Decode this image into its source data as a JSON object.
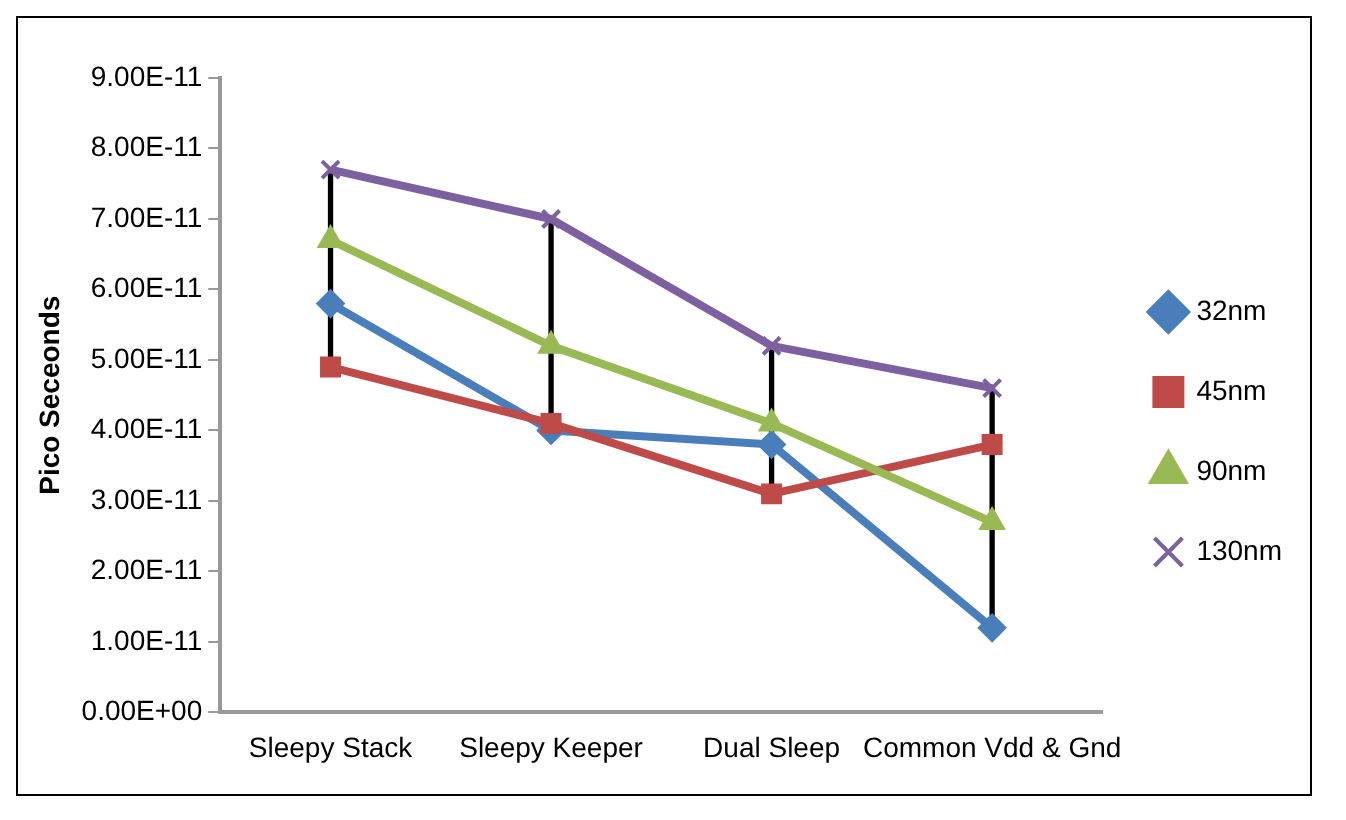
{
  "chart_data": {
    "type": "line",
    "ylabel": "Pico Seceonds",
    "categories": [
      "Sleepy Stack",
      "Sleepy Keeper",
      "Dual Sleep",
      "Common Vdd & Gnd"
    ],
    "series": [
      {
        "name": "32nm",
        "color": "#4a7ebb",
        "marker": "diamond",
        "values": [
          5.8e-11,
          4e-11,
          3.8e-11,
          1.2e-11
        ]
      },
      {
        "name": "45nm",
        "color": "#be4b48",
        "marker": "square",
        "values": [
          4.9e-11,
          4.1e-11,
          3.1e-11,
          3.8e-11
        ]
      },
      {
        "name": "90nm",
        "color": "#98b954",
        "marker": "triangle",
        "values": [
          6.7e-11,
          5.2e-11,
          4.1e-11,
          2.7e-11
        ]
      },
      {
        "name": "130nm",
        "color": "#7d60a0",
        "marker": "cross",
        "values": [
          7.7e-11,
          7e-11,
          5.2e-11,
          4.6e-11
        ]
      },
      {
        "type": "bar",
        "color": "#000000",
        "base": [
          4.9e-11,
          4e-11,
          3.1e-11,
          1.2e-11
        ],
        "values": [
          2.8e-11,
          3e-11,
          2.1e-11,
          3.4e-11
        ]
      }
    ],
    "ylim": [
      0,
      9e-11
    ],
    "yticks": [
      {
        "value": 0,
        "label": "0.00E+00"
      },
      {
        "value": 1e-11,
        "label": "1.00E-11"
      },
      {
        "value": 2e-11,
        "label": "2.00E-11"
      },
      {
        "value": 3e-11,
        "label": "3.00E-11"
      },
      {
        "value": 4e-11,
        "label": "4.00E-11"
      },
      {
        "value": 5e-11,
        "label": "5.00E-11"
      },
      {
        "value": 6e-11,
        "label": "6.00E-11"
      },
      {
        "value": 7e-11,
        "label": "7.00E-11"
      },
      {
        "value": 8e-11,
        "label": "8.00E-11"
      },
      {
        "value": 9e-11,
        "label": "9.00E-11"
      }
    ],
    "grid": false,
    "legend": "right",
    "line_style": "solid"
  }
}
